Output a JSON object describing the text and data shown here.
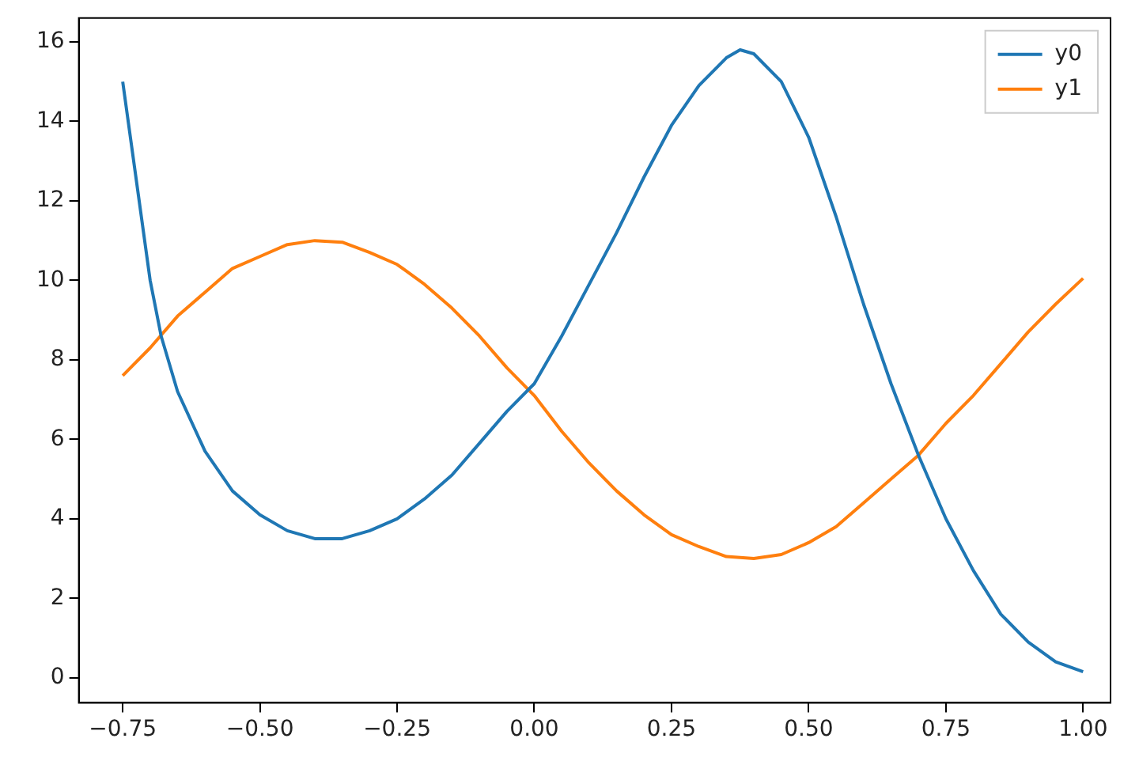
{
  "chart_data": {
    "type": "line",
    "legend": "top right",
    "grid": false,
    "marker": "none",
    "line_style": "solid",
    "xlim": [
      -0.83,
      1.05
    ],
    "ylim": [
      -0.63,
      16.6
    ],
    "xticks": [
      {
        "value": -0.75,
        "label": "−0.75"
      },
      {
        "value": -0.5,
        "label": "−0.50"
      },
      {
        "value": -0.25,
        "label": "−0.25"
      },
      {
        "value": 0,
        "label": "0.00"
      },
      {
        "value": 0.25,
        "label": "0.25"
      },
      {
        "value": 0.5,
        "label": "0.50"
      },
      {
        "value": 0.75,
        "label": "0.75"
      },
      {
        "value": 1,
        "label": "1.00"
      }
    ],
    "yticks": [
      0,
      2,
      4,
      6,
      8,
      10,
      12,
      14,
      16
    ],
    "series": [
      {
        "name": "y0",
        "color": "#1f77b4",
        "x": [
          -0.75,
          -0.72,
          -0.7,
          -0.68,
          -0.65,
          -0.6,
          -0.55,
          -0.5,
          -0.45,
          -0.4,
          -0.35,
          -0.3,
          -0.25,
          -0.2,
          -0.15,
          -0.1,
          -0.05,
          0,
          0.05,
          0.1,
          0.15,
          0.2,
          0.25,
          0.3,
          0.35,
          0.375,
          0.4,
          0.45,
          0.5,
          0.55,
          0.6,
          0.65,
          0.7,
          0.75,
          0.8,
          0.85,
          0.9,
          0.95,
          1
        ],
        "values": [
          15.0,
          12.0,
          10.0,
          8.6,
          7.2,
          5.7,
          4.7,
          4.1,
          3.7,
          3.5,
          3.5,
          3.7,
          4.0,
          4.5,
          5.1,
          5.9,
          6.7,
          7.4,
          8.6,
          9.9,
          11.2,
          12.6,
          13.9,
          14.9,
          15.6,
          15.8,
          15.7,
          15.0,
          13.6,
          11.6,
          9.4,
          7.4,
          5.6,
          4.0,
          2.7,
          1.6,
          0.9,
          0.4,
          0.15
        ]
      },
      {
        "name": "y1",
        "color": "#ff7f0e",
        "x": [
          -0.75,
          -0.7,
          -0.65,
          -0.6,
          -0.55,
          -0.5,
          -0.45,
          -0.4,
          -0.35,
          -0.3,
          -0.25,
          -0.2,
          -0.15,
          -0.1,
          -0.05,
          0,
          0.05,
          0.1,
          0.15,
          0.2,
          0.25,
          0.3,
          0.35,
          0.4,
          0.45,
          0.5,
          0.55,
          0.6,
          0.65,
          0.7,
          0.75,
          0.8,
          0.85,
          0.9,
          0.95,
          1
        ],
        "values": [
          7.6,
          8.3,
          9.1,
          9.7,
          10.3,
          10.6,
          10.9,
          11.0,
          10.96,
          10.7,
          10.4,
          9.9,
          9.3,
          8.6,
          7.8,
          7.1,
          6.2,
          5.4,
          4.7,
          4.1,
          3.6,
          3.3,
          3.05,
          3.0,
          3.1,
          3.4,
          3.8,
          4.4,
          5.0,
          5.6,
          6.4,
          7.1,
          7.9,
          8.7,
          9.4,
          10.05
        ]
      }
    ]
  }
}
